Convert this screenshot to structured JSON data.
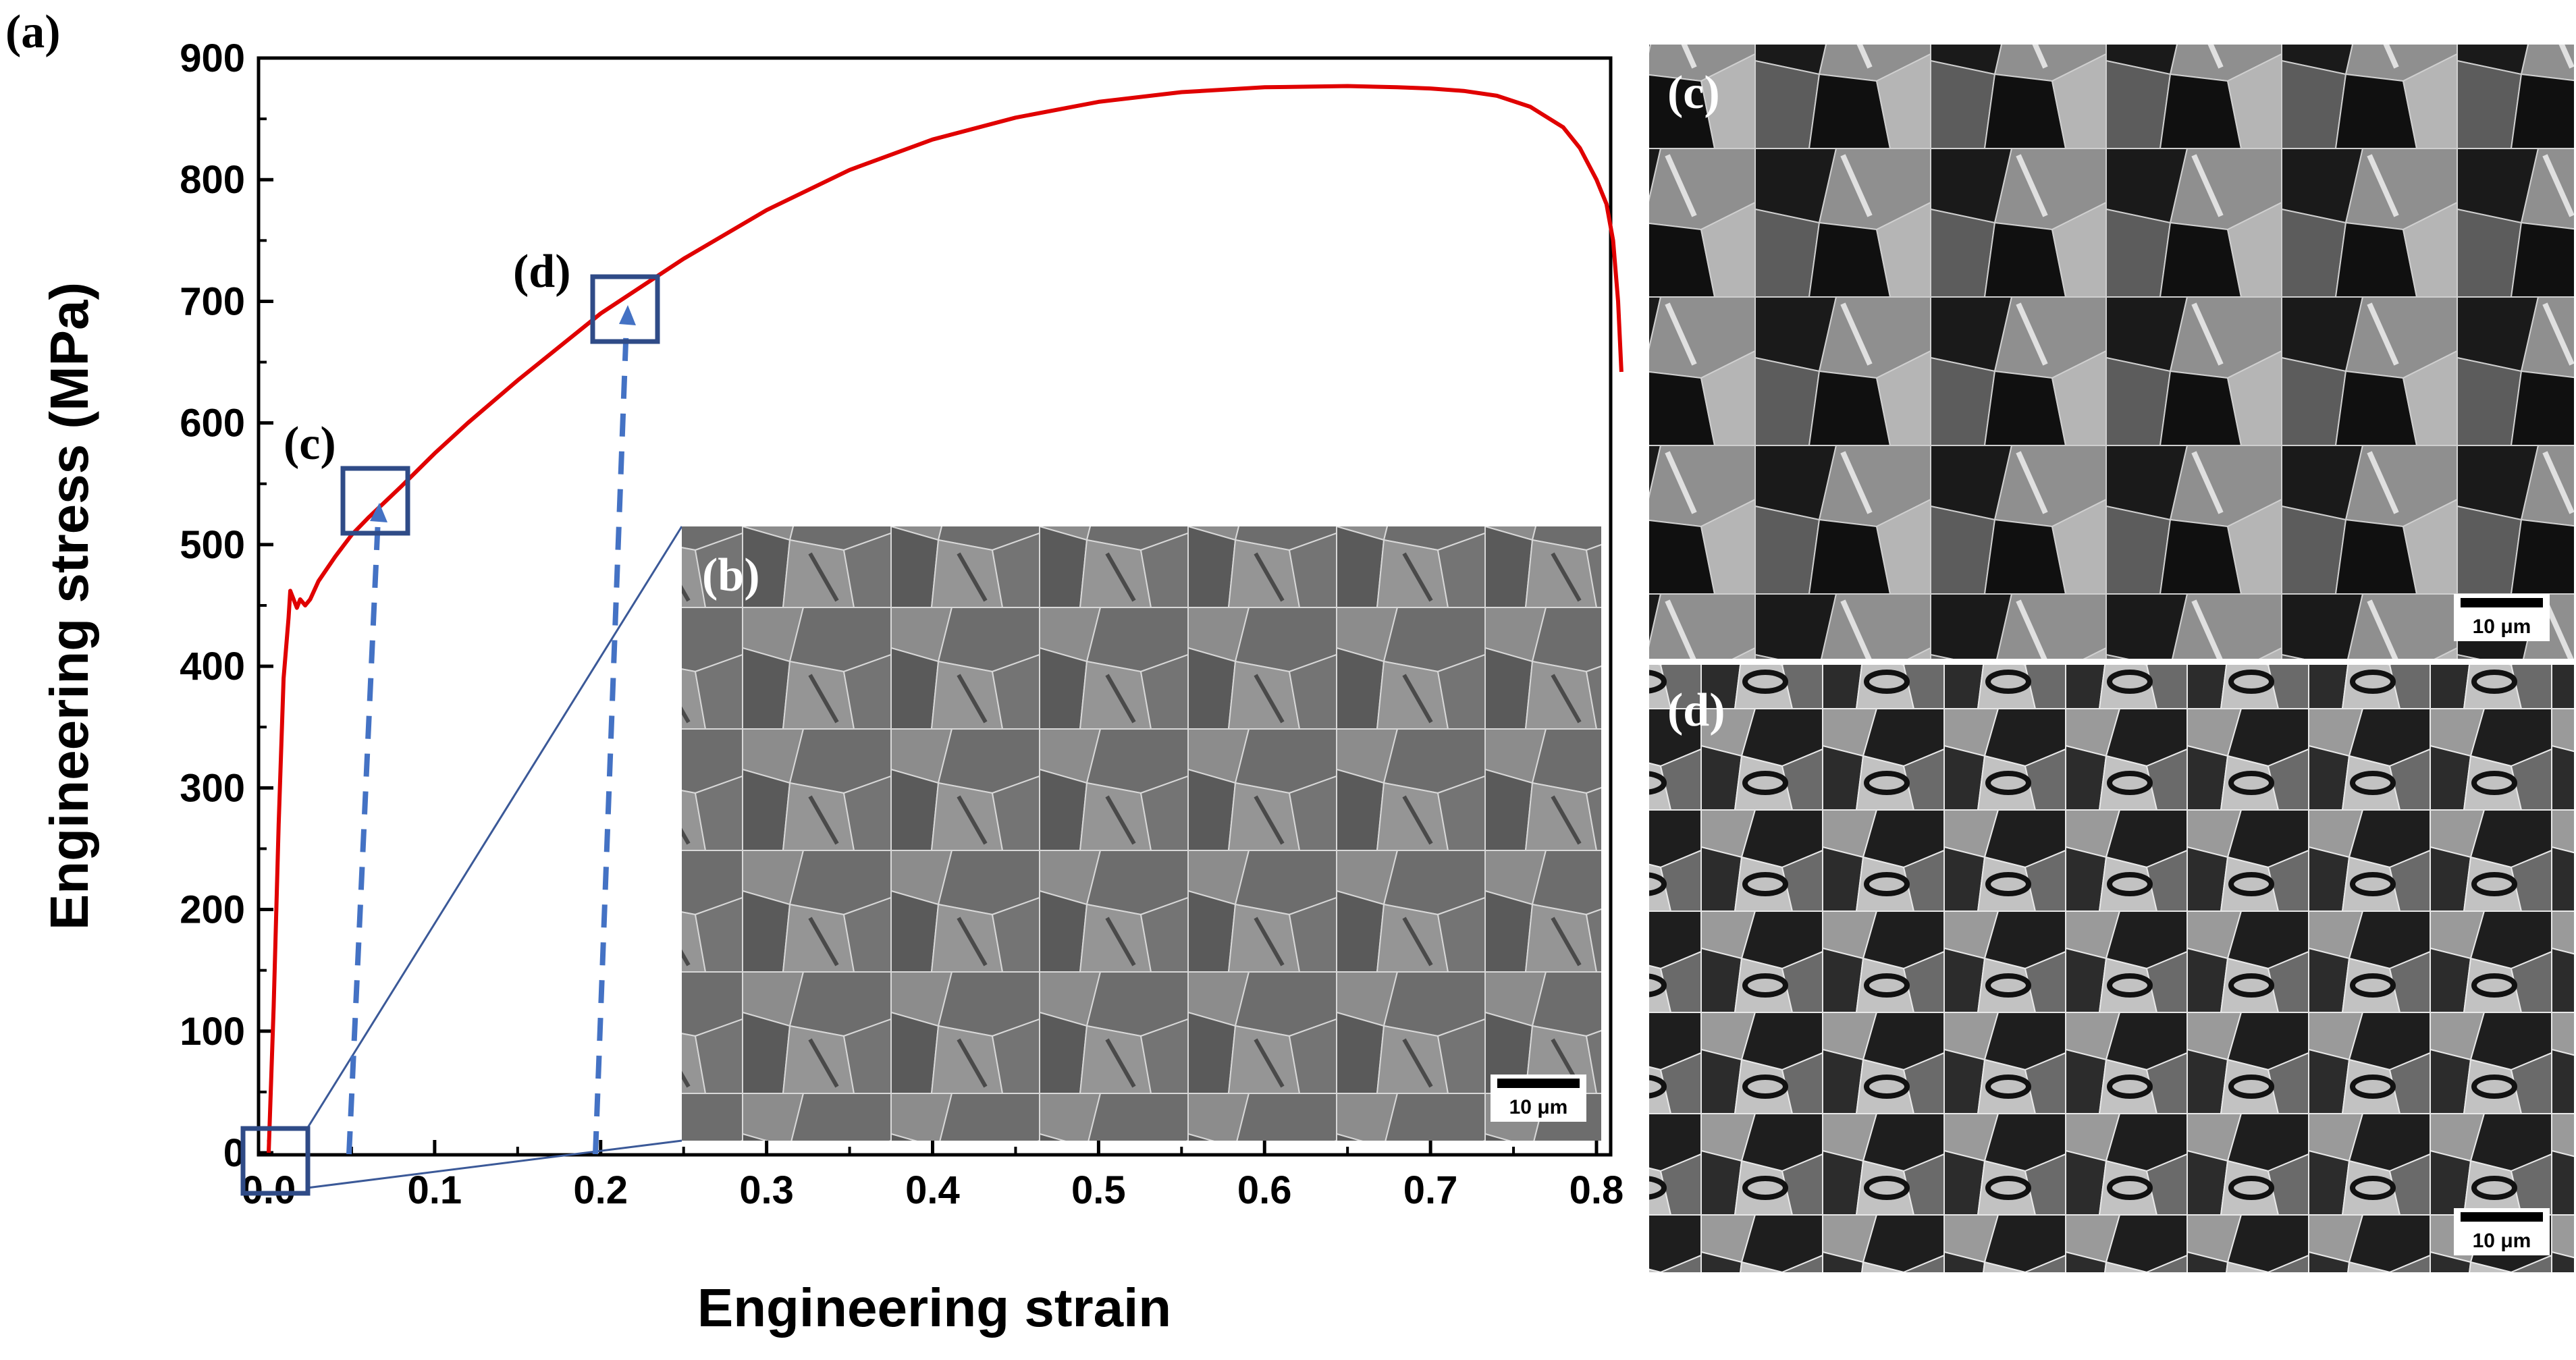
{
  "chart_data": {
    "type": "line",
    "title": "",
    "xlabel": "Engineering strain",
    "ylabel": "Engineering stress (MPa)",
    "xlim": [
      0,
      0.825
    ],
    "ylim": [
      0,
      900
    ],
    "xticks": [
      "0.0",
      "0.1",
      "0.2",
      "0.3",
      "0.4",
      "0.5",
      "0.6",
      "0.7",
      "0.8"
    ],
    "yticks": [
      "0",
      "100",
      "200",
      "300",
      "400",
      "500",
      "600",
      "700",
      "800",
      "900"
    ],
    "grid": false,
    "series": [
      {
        "color": "#e00000",
        "x": [
          0.0,
          0.003,
          0.006,
          0.009,
          0.012,
          0.013,
          0.015,
          0.017,
          0.019,
          0.022,
          0.025,
          0.03,
          0.04,
          0.05,
          0.06,
          0.07,
          0.08,
          0.1,
          0.12,
          0.15,
          0.2,
          0.25,
          0.3,
          0.35,
          0.4,
          0.45,
          0.5,
          0.55,
          0.6,
          0.65,
          0.68,
          0.7,
          0.72,
          0.74,
          0.76,
          0.78,
          0.79,
          0.8,
          0.806,
          0.81,
          0.813,
          0.815
        ],
        "y": [
          0,
          120,
          270,
          390,
          440,
          462,
          455,
          448,
          455,
          450,
          455,
          470,
          490,
          508,
          522,
          535,
          548,
          575,
          600,
          635,
          690,
          735,
          775,
          808,
          833,
          851,
          864,
          872,
          876,
          877,
          876,
          875,
          873,
          869,
          860,
          843,
          826,
          800,
          780,
          750,
          700,
          642
        ]
      }
    ],
    "annotations": [
      {
        "label": "(c)",
        "x": 0.065,
        "y": 535
      },
      {
        "label": "(d)",
        "x": 0.22,
        "y": 695
      }
    ]
  },
  "figure_labels": {
    "panel_a": "(a)",
    "panel_b": "(b)",
    "panel_c": "(c)",
    "panel_d": "(d)",
    "marker_c": "(c)",
    "marker_d": "(d)"
  },
  "scale_bars": {
    "b": "10 μm",
    "c": "10 μm",
    "d": "10 μm"
  },
  "colors": {
    "curve": "#e00000",
    "marker_box": "#2f4b87",
    "arrow": "#4472c4",
    "zoom_line": "#3b5998"
  }
}
